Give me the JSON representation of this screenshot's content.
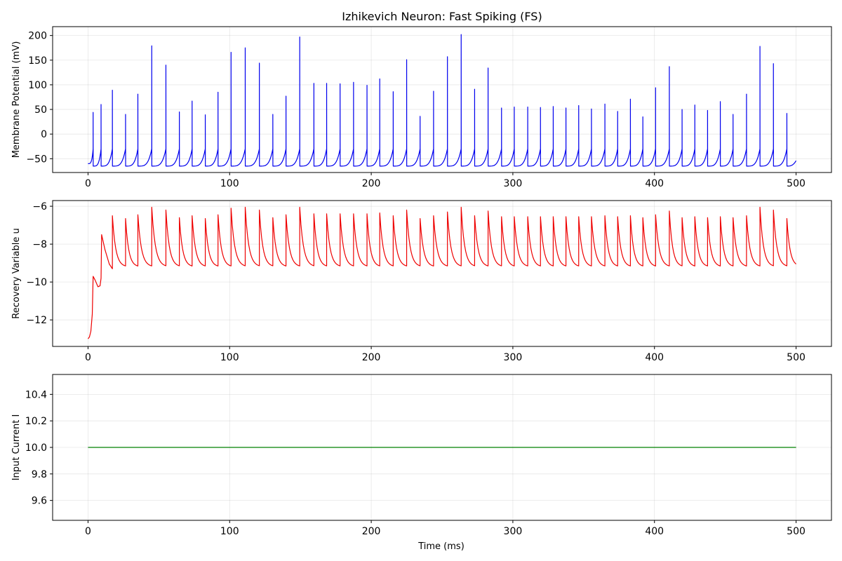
{
  "figure": {
    "title": "Izhikevich Neuron: Fast Spiking (FS)"
  },
  "chart_data": [
    {
      "type": "line",
      "ylabel": "Membrane Potential (mV)",
      "xlabel": "",
      "xlim": [
        -25,
        525
      ],
      "ylim": [
        -78,
        218
      ],
      "xticks": [
        0,
        100,
        200,
        300,
        400,
        500
      ],
      "yticks": [
        -50,
        0,
        50,
        100,
        150,
        200
      ],
      "grid": true,
      "series": [
        {
          "color": "#0000ee",
          "spike_times": [
            3.6,
            9.2,
            17.2,
            26.5,
            35.2,
            45.0,
            55.0,
            64.5,
            73.5,
            82.8,
            91.8,
            101.0,
            111.0,
            121.0,
            130.5,
            139.8,
            149.5,
            159.5,
            168.5,
            178.0,
            187.5,
            197.0,
            206.0,
            215.5,
            225.0,
            234.5,
            244.0,
            253.8,
            263.5,
            273.0,
            282.5,
            292.0,
            301.0,
            310.5,
            319.5,
            328.5,
            337.5,
            346.5,
            355.5,
            365.0,
            374.0,
            383.0,
            391.8,
            400.8,
            410.5,
            419.5,
            428.5,
            437.5,
            446.5,
            455.5,
            465.0,
            474.5,
            484.0,
            493.5
          ],
          "spike_peaks": [
            44,
            60,
            89,
            40,
            81,
            179,
            140,
            45,
            67,
            39,
            85,
            166,
            175,
            144,
            40,
            77,
            197,
            103,
            103,
            102,
            105,
            99,
            112,
            86,
            151,
            36,
            87,
            157,
            202,
            91,
            134,
            53,
            55,
            55,
            54,
            56,
            53,
            58,
            51,
            61,
            46,
            71,
            35,
            94,
            137,
            50,
            59,
            48,
            66,
            40,
            81,
            178,
            143,
            42
          ],
          "rest": -65,
          "start": -60,
          "end": -54,
          "t_end": 500
        }
      ]
    },
    {
      "type": "line",
      "ylabel": "Recovery Variable u",
      "xlabel": "",
      "xlim": [
        -25,
        525
      ],
      "ylim": [
        -13.4,
        -5.7
      ],
      "xticks": [
        0,
        100,
        200,
        300,
        400,
        500
      ],
      "yticks": [
        -12,
        -10,
        -8,
        -6
      ],
      "grid": true,
      "series": [
        {
          "color": "#ee0000",
          "start": -13.0,
          "end": -9.05,
          "trough": -9.2,
          "t_end": 500,
          "early_points": [
            [
              0,
              -13.0
            ],
            [
              1,
              -12.9
            ],
            [
              2,
              -12.6
            ],
            [
              3,
              -11.7
            ],
            [
              3.6,
              -9.7
            ],
            [
              5,
              -9.9
            ],
            [
              7,
              -10.25
            ],
            [
              8.5,
              -10.2
            ],
            [
              9.2,
              -9.8
            ],
            [
              9.6,
              -7.5
            ],
            [
              12,
              -8.3
            ],
            [
              15,
              -9.05
            ],
            [
              17.2,
              -9.3
            ]
          ],
          "peaks": [
            -7.5,
            -6.5,
            -6.65,
            -6.45,
            -6.05,
            -6.2,
            -6.6,
            -6.5,
            -6.65,
            -6.45,
            -6.1,
            -6.05,
            -6.2,
            -6.6,
            -6.45,
            -6.05,
            -6.4,
            -6.4,
            -6.4,
            -6.4,
            -6.4,
            -6.35,
            -6.5,
            -6.2,
            -6.65,
            -6.5,
            -6.3,
            -6.05,
            -6.5,
            -6.25,
            -6.55,
            -6.55,
            -6.55,
            -6.55,
            -6.55,
            -6.55,
            -6.55,
            -6.55,
            -6.5,
            -6.55,
            -6.5,
            -6.6,
            -6.45,
            -6.25,
            -6.6,
            -6.55,
            -6.6,
            -6.55,
            -6.6,
            -6.5,
            -6.05,
            -6.2,
            -6.65
          ]
        }
      ]
    },
    {
      "type": "line",
      "ylabel": "Input Current I",
      "xlabel": "Time (ms)",
      "xlim": [
        -25,
        525
      ],
      "ylim": [
        9.45,
        10.55
      ],
      "xticks": [
        0,
        100,
        200,
        300,
        400,
        500
      ],
      "yticks": [
        9.6,
        9.8,
        10.0,
        10.2,
        10.4
      ],
      "grid": true,
      "series": [
        {
          "color": "#008000",
          "x": [
            0,
            500
          ],
          "y": [
            10.0,
            10.0
          ]
        }
      ]
    }
  ]
}
